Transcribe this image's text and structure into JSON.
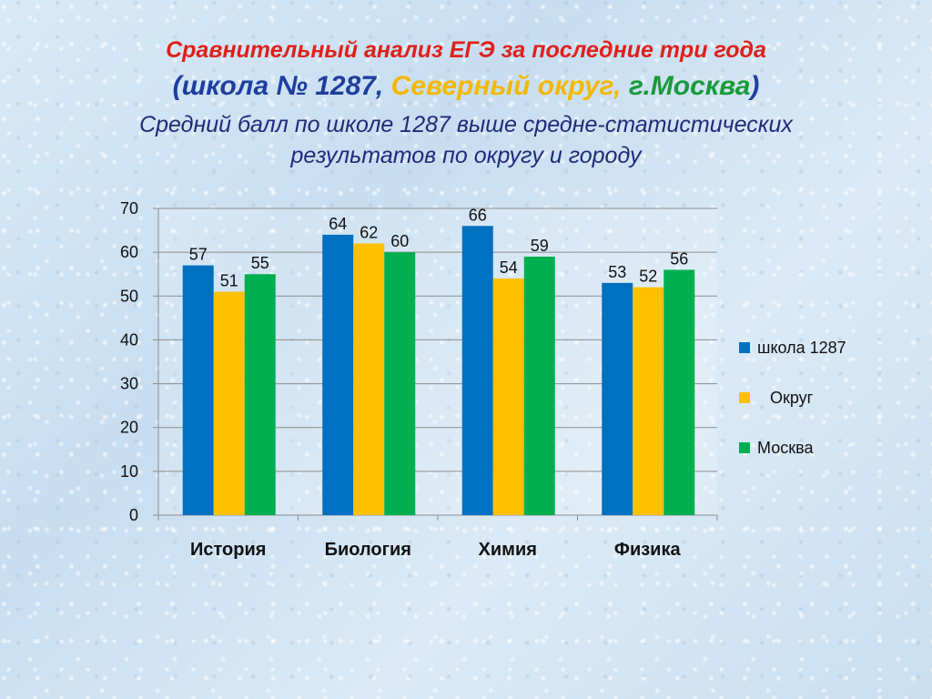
{
  "title": {
    "line1": "Сравнительный анализ ЕГЭ за последние три года",
    "line2_open": "(",
    "line2_school": "школа № 1287,",
    "line2_district": "Северный округ,",
    "line2_city": "г.Москва",
    "line2_close": ")",
    "line3": "Средний балл по школе 1287 выше средне-статистических",
    "line4": "результатов по округу и городу"
  },
  "colors": {
    "title_red": "#e0201b",
    "title_blue": "#1f3f9f",
    "title_yellow": "#f5b800",
    "title_green": "#1a9a3a",
    "subtitle": "#1f2a7a"
  },
  "chart_data": {
    "type": "bar",
    "categories": [
      "История",
      "Биология",
      "Химия",
      "Физика"
    ],
    "series": [
      {
        "name": "школа 1287",
        "color": "#0070c0",
        "values": [
          57,
          64,
          66,
          53
        ]
      },
      {
        "name": "Округ",
        "color": "#ffc000",
        "values": [
          51,
          62,
          54,
          52
        ]
      },
      {
        "name": "Москва",
        "color": "#00b050",
        "values": [
          55,
          60,
          59,
          56
        ]
      }
    ],
    "data_labels": [
      [
        "57",
        "64",
        "66",
        "53"
      ],
      [
        "51",
        "62",
        "54",
        "52"
      ],
      [
        "55",
        "60",
        "59",
        "56"
      ]
    ],
    "ylim": [
      0,
      70
    ],
    "yticks": [
      0,
      10,
      20,
      30,
      40,
      50,
      60,
      70
    ],
    "ytick_labels": [
      "0",
      "10",
      "20",
      "30",
      "40",
      "50",
      "60",
      "70"
    ],
    "grid": true,
    "legend_position": "right",
    "title": "",
    "xlabel": "",
    "ylabel": ""
  }
}
